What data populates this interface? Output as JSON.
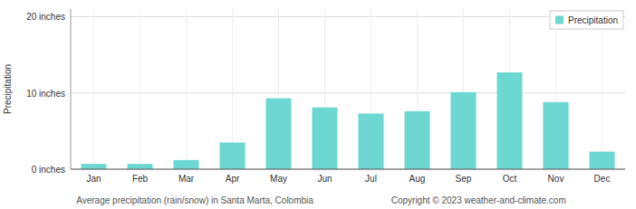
{
  "chart_data": {
    "type": "bar",
    "categories": [
      "Jan",
      "Feb",
      "Mar",
      "Apr",
      "May",
      "Jun",
      "Jul",
      "Aug",
      "Sep",
      "Oct",
      "Nov",
      "Dec"
    ],
    "series": [
      {
        "name": "Precipitation",
        "color": "#6dd8d2",
        "values": [
          0.7,
          0.7,
          1.2,
          3.5,
          9.3,
          8.1,
          7.3,
          7.6,
          10.1,
          12.7,
          8.8,
          2.3
        ]
      }
    ],
    "ylabel": "Precipitation",
    "ylim": [
      0,
      21
    ],
    "yticks": [
      {
        "value": 0,
        "label": "0 inches"
      },
      {
        "value": 10,
        "label": "10 inches"
      },
      {
        "value": 20,
        "label": "20 inches"
      }
    ],
    "grid": true,
    "legend": "upper-right",
    "annotations": [
      "Average precipitation (rain/snow) in Santa Marta, Colombia",
      "Copyright © 2023  weather-and-climate.com"
    ]
  }
}
